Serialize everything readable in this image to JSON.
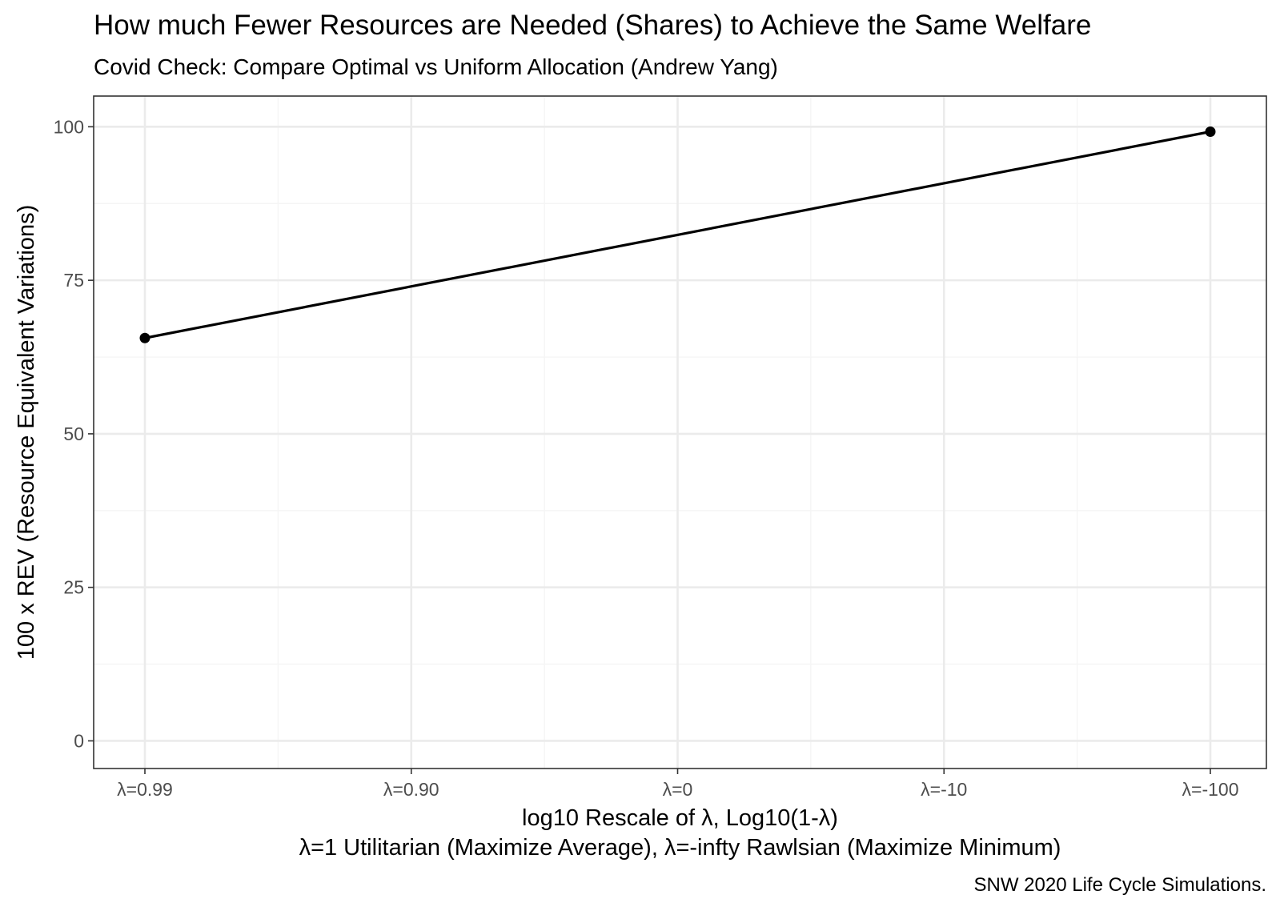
{
  "chart_data": {
    "type": "line",
    "title": "How much Fewer Resources are Needed (Shares) to Achieve the Same Welfare",
    "subtitle": "Covid Check: Compare Optimal vs Uniform Allocation (Andrew Yang)",
    "xlabel_line1": "log10 Rescale of λ, Log10(1-λ)",
    "xlabel_line2": "λ=1 Utilitarian (Maximize Average), λ=-infty Rawlsian (Maximize Minimum)",
    "ylabel": "100 x REV (Resource Equivalent Variations)",
    "caption": "SNW 2020 Life Cycle Simulations.",
    "x_ticks": [
      "λ=0.99",
      "λ=0.90",
      "λ=0",
      "λ=-10",
      "λ=-100"
    ],
    "y_ticks": [
      0,
      25,
      50,
      75,
      100
    ],
    "ylim": [
      -4.5,
      105
    ],
    "grid": true,
    "series": [
      {
        "x": [
          "λ=0.99",
          "λ=-100"
        ],
        "values": [
          65.6,
          99.2
        ]
      }
    ],
    "colors": {
      "line": "#000000",
      "grid_major": "#ebebeb",
      "grid_minor": "#f5f5f5",
      "panel_border": "#333333",
      "tick_text": "#4d4d4d"
    }
  }
}
